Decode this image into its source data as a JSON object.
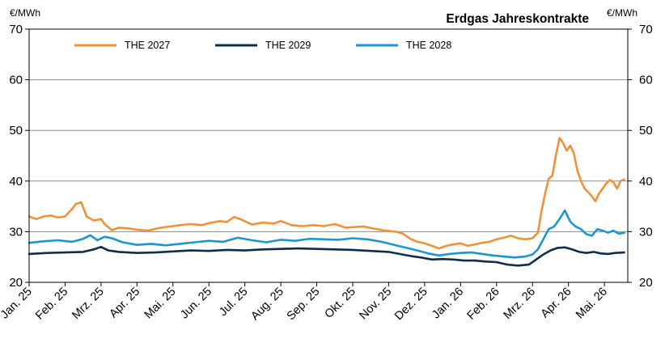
{
  "chart_data": {
    "type": "line",
    "title": "Erdgas Jahreskontrakte",
    "unit_left": "€/MWh",
    "unit_right": "€/MWh",
    "ylim": [
      20,
      70
    ],
    "yticks": [
      20,
      30,
      40,
      50,
      60,
      70
    ],
    "grid": true,
    "legend_position": "top-left",
    "x_tick_labels": [
      "Jan. 25",
      "Feb. 25",
      "Mrz. 25",
      "Apr. 25",
      "Mai. 25",
      "Jun. 25",
      "Jul. 25",
      "Aug. 25",
      "Sep. 25",
      "Okt. 25",
      "Nov. 25",
      "Dez. 25",
      "Jan. 26",
      "Feb. 26",
      "Mrz. 26",
      "Apr. 26",
      "Mai. 26"
    ],
    "xlim": [
      0,
      16.65
    ],
    "series": [
      {
        "name": "THE 2027",
        "color": "#F0913A",
        "x": [
          0,
          0.2,
          0.4,
          0.6,
          0.8,
          1.0,
          1.2,
          1.3,
          1.45,
          1.6,
          1.8,
          2.0,
          2.1,
          2.3,
          2.5,
          2.8,
          3.0,
          3.3,
          3.6,
          3.9,
          4.2,
          4.5,
          4.8,
          5.0,
          5.3,
          5.5,
          5.7,
          5.9,
          6.2,
          6.5,
          6.8,
          7.0,
          7.3,
          7.6,
          7.9,
          8.2,
          8.5,
          8.8,
          9.0,
          9.3,
          9.6,
          9.9,
          10.2,
          10.4,
          10.6,
          10.8,
          11.0,
          11.2,
          11.4,
          11.6,
          11.8,
          12.0,
          12.2,
          12.4,
          12.6,
          12.8,
          13.0,
          13.2,
          13.4,
          13.6,
          13.8,
          14.0,
          14.15,
          14.25,
          14.35,
          14.45,
          14.55,
          14.65,
          14.75,
          14.85,
          14.95,
          15.05,
          15.15,
          15.25,
          15.35,
          15.45,
          15.55,
          15.65,
          15.75,
          15.85,
          15.95,
          16.05,
          16.15,
          16.25,
          16.35,
          16.45,
          16.55
        ],
        "values": [
          33,
          32.5,
          33,
          33.2,
          32.8,
          33,
          34.5,
          35.5,
          35.8,
          33,
          32.2,
          32.5,
          31.5,
          30.3,
          30.8,
          30.6,
          30.4,
          30.2,
          30.7,
          31,
          31.3,
          31.5,
          31.3,
          31.7,
          32.1,
          31.9,
          32.9,
          32.4,
          31.4,
          31.8,
          31.6,
          32.1,
          31.3,
          31.1,
          31.3,
          31.1,
          31.5,
          30.8,
          30.9,
          31.0,
          30.6,
          30.2,
          30.0,
          29.6,
          28.6,
          28,
          27.7,
          27.2,
          26.7,
          27.2,
          27.5,
          27.7,
          27.2,
          27.5,
          27.8,
          28.0,
          28.5,
          28.8,
          29.2,
          28.7,
          28.5,
          28.7,
          29.8,
          34,
          37.5,
          40.5,
          41,
          45,
          48.5,
          47.5,
          46,
          47,
          45.5,
          42,
          40,
          38.5,
          37.8,
          37,
          36,
          37.5,
          38.5,
          39.5,
          40.2,
          39.8,
          38.5,
          40,
          40.3
        ]
      },
      {
        "name": "THE 2029",
        "color": "#0D2F4F",
        "x": [
          0,
          0.5,
          1.0,
          1.5,
          1.8,
          2.0,
          2.2,
          2.5,
          3.0,
          3.5,
          4.0,
          4.5,
          5.0,
          5.5,
          6.0,
          6.5,
          7.0,
          7.5,
          8.0,
          8.5,
          9.0,
          9.5,
          10.0,
          10.3,
          10.6,
          10.9,
          11.2,
          11.5,
          11.8,
          12.1,
          12.4,
          12.7,
          13.0,
          13.3,
          13.6,
          13.9,
          14.1,
          14.3,
          14.5,
          14.7,
          14.9,
          15.1,
          15.3,
          15.5,
          15.7,
          15.9,
          16.1,
          16.3,
          16.55
        ],
        "values": [
          25.6,
          25.8,
          25.9,
          26,
          26.5,
          27.0,
          26.3,
          26.0,
          25.8,
          25.9,
          26.1,
          26.3,
          26.2,
          26.4,
          26.3,
          26.5,
          26.6,
          26.7,
          26.6,
          26.5,
          26.4,
          26.2,
          26.0,
          25.6,
          25.2,
          24.9,
          24.5,
          24.6,
          24.5,
          24.3,
          24.3,
          24.1,
          24.0,
          23.5,
          23.3,
          23.5,
          24.5,
          25.5,
          26.3,
          26.8,
          26.9,
          26.5,
          26.0,
          25.8,
          26.0,
          25.7,
          25.6,
          25.8,
          25.9
        ]
      },
      {
        "name": "THE 2028",
        "color": "#1E95D3",
        "x": [
          0,
          0.4,
          0.8,
          1.2,
          1.5,
          1.7,
          1.9,
          2.1,
          2.3,
          2.6,
          3.0,
          3.4,
          3.8,
          4.2,
          4.6,
          5.0,
          5.4,
          5.8,
          6.2,
          6.6,
          7.0,
          7.4,
          7.8,
          8.2,
          8.6,
          9.0,
          9.4,
          9.8,
          10.2,
          10.5,
          10.8,
          11.1,
          11.4,
          11.7,
          12.0,
          12.3,
          12.6,
          12.9,
          13.2,
          13.5,
          13.8,
          14.0,
          14.15,
          14.3,
          14.45,
          14.6,
          14.75,
          14.9,
          15.05,
          15.2,
          15.35,
          15.5,
          15.65,
          15.8,
          15.95,
          16.1,
          16.25,
          16.4,
          16.55
        ],
        "values": [
          27.8,
          28.1,
          28.3,
          28.0,
          28.6,
          29.3,
          28.3,
          29.0,
          28.7,
          27.9,
          27.4,
          27.6,
          27.3,
          27.6,
          27.9,
          28.2,
          28.0,
          28.8,
          28.3,
          27.9,
          28.4,
          28.2,
          28.6,
          28.5,
          28.4,
          28.7,
          28.5,
          28.0,
          27.3,
          26.8,
          26.3,
          25.7,
          25.3,
          25.6,
          25.8,
          25.9,
          25.6,
          25.3,
          25.1,
          24.9,
          25.1,
          25.5,
          26.5,
          28.5,
          30.5,
          31.0,
          32.5,
          34.2,
          32.0,
          31.0,
          30.5,
          29.5,
          29.2,
          30.5,
          30.2,
          29.8,
          30.2,
          29.6,
          29.8
        ]
      }
    ]
  }
}
